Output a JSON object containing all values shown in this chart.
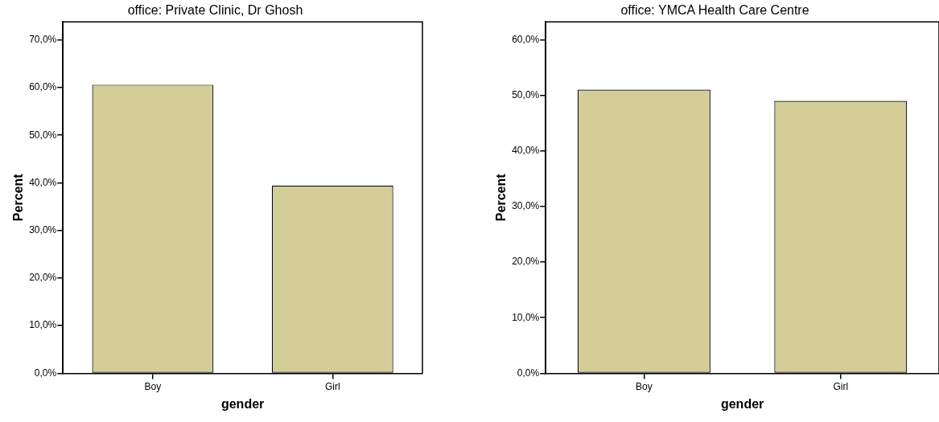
{
  "chart_data": [
    {
      "type": "bar",
      "title": "office: Private Clinic, Dr Ghosh",
      "xlabel": "gender",
      "ylabel": "Percent",
      "categories": [
        "Boy",
        "Girl"
      ],
      "values": [
        60.6,
        39.4
      ],
      "color": "#d3ce97",
      "ylim": [
        0,
        73.8
      ],
      "yticks": [
        {
          "value": 0,
          "label": "0,0%"
        },
        {
          "value": 10,
          "label": "10,0%"
        },
        {
          "value": 20,
          "label": "20,0%"
        },
        {
          "value": 30,
          "label": "30,0%"
        },
        {
          "value": 40,
          "label": "40,0%"
        },
        {
          "value": 50,
          "label": "50,0%"
        },
        {
          "value": 60,
          "label": "60,0%"
        },
        {
          "value": 70,
          "label": "70,0%"
        }
      ],
      "grid": false,
      "legend": false
    },
    {
      "type": "bar",
      "title": "office: YMCA Health Care Centre",
      "xlabel": "gender",
      "ylabel": "Percent",
      "categories": [
        "Boy",
        "Girl"
      ],
      "values": [
        51.0,
        49.0
      ],
      "color": "#d3ce97",
      "ylim": [
        0,
        63.2
      ],
      "yticks": [
        {
          "value": 0,
          "label": "0,0%"
        },
        {
          "value": 10,
          "label": "10,0%"
        },
        {
          "value": 20,
          "label": "20,0%"
        },
        {
          "value": 30,
          "label": "30,0%"
        },
        {
          "value": 40,
          "label": "40,0%"
        },
        {
          "value": 50,
          "label": "50,0%"
        },
        {
          "value": 60,
          "label": "60,0%"
        }
      ],
      "grid": false,
      "legend": false
    }
  ]
}
